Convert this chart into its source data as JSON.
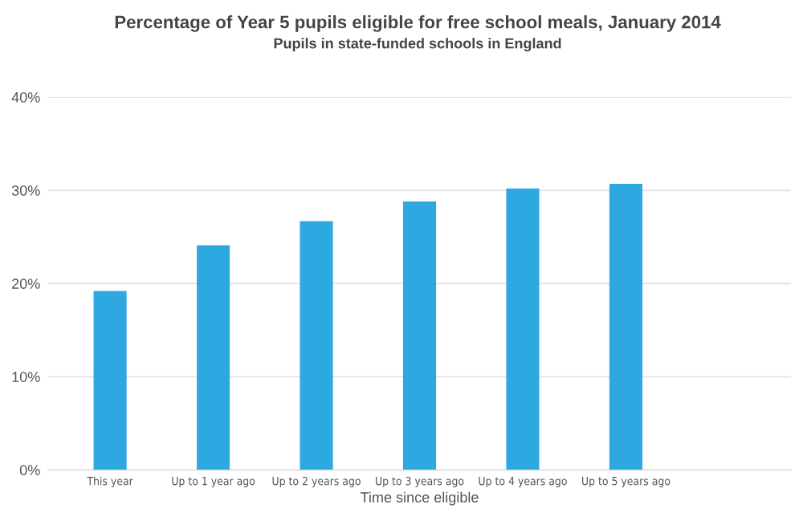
{
  "chart_data": {
    "type": "bar",
    "title": "Percentage of Year 5 pupils eligible for free school meals, January 2014",
    "subtitle": "Pupils in state-funded schools in England",
    "xlabel": "Time since eligible",
    "categories": [
      "This year",
      "Up to 1 year ago",
      "Up to 2 years ago",
      "Up to 3 years ago",
      "Up to 4 years ago",
      "Up to 5 years ago",
      null
    ],
    "values": [
      19.2,
      24.1,
      26.7,
      28.8,
      30.2,
      30.7,
      0
    ],
    "color": "#2ea8e1",
    "ylim": [
      0,
      40
    ],
    "yticks": [
      {
        "value": 0,
        "label": "0%"
      },
      {
        "value": 10,
        "label": "10%"
      },
      {
        "value": 20,
        "label": "20%"
      },
      {
        "value": 30,
        "label": "30%"
      },
      {
        "value": 40,
        "label": "40%"
      }
    ],
    "grid": "y"
  }
}
